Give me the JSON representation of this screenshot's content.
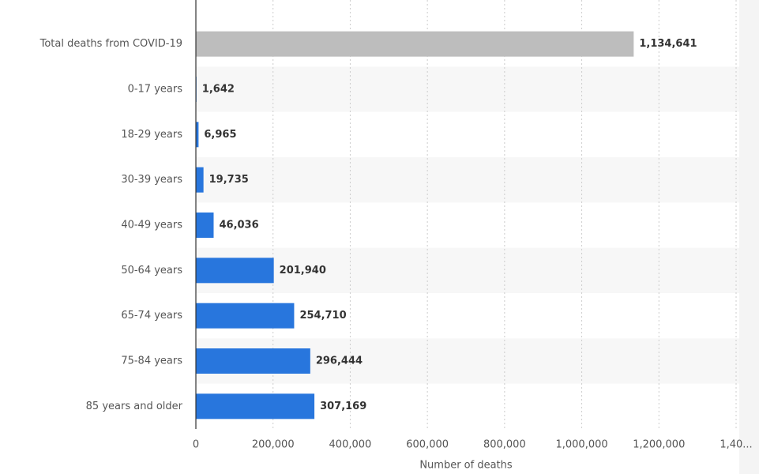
{
  "chart_data": {
    "type": "bar",
    "orientation": "horizontal",
    "x_label": "Number of deaths",
    "categories": [
      "Total deaths from COVID-19",
      "0-17 years",
      "18-29 years",
      "30-39 years",
      "40-49 years",
      "50-64 years",
      "65-74 years",
      "75-84 years",
      "85 years and older"
    ],
    "values": [
      1134641,
      1642,
      6965,
      19735,
      46036,
      201940,
      254710,
      296444,
      307169
    ],
    "value_labels": [
      "1,134,641",
      "1,642",
      "6,965",
      "19,735",
      "46,036",
      "201,940",
      "254,710",
      "296,444",
      "307,169"
    ],
    "colors": [
      "#bdbdbd",
      "#2876dd",
      "#2876dd",
      "#2876dd",
      "#2876dd",
      "#2876dd",
      "#2876dd",
      "#2876dd",
      "#2876dd"
    ],
    "xlim": [
      0,
      1400000
    ],
    "xticks": [
      0,
      {
        "value": 200000,
        "label": "200,000"
      },
      {
        "value": 400000,
        "label": "400,000"
      },
      {
        "value": 600000,
        "label": "600,000"
      },
      {
        "value": 800000,
        "label": "800,000"
      },
      {
        "value": 1000000,
        "label": "1,000,000"
      },
      {
        "value": 1200000,
        "label": "1,200,000"
      },
      {
        "value": 1400000,
        "label": "1,40..."
      }
    ],
    "grid": true
  }
}
